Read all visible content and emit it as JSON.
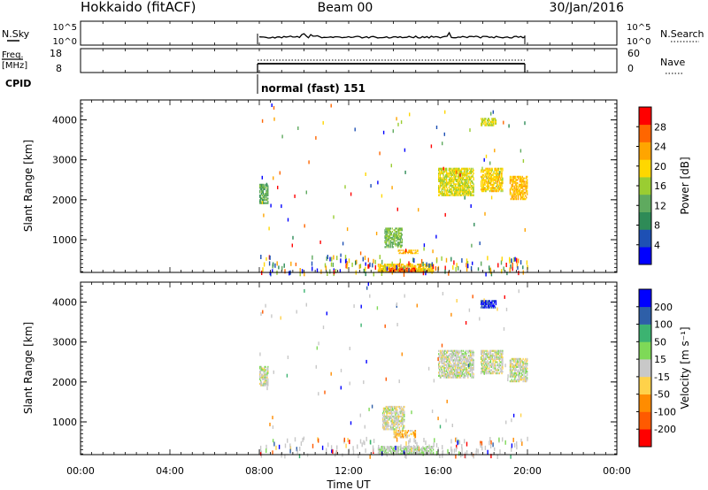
{
  "header": {
    "station": "Hokkaido (fitACF)",
    "beam": "Beam 00",
    "date": "30/Jan/2016"
  },
  "noise_panel": {
    "left_label": "N.Sky",
    "right_label": "N.Search",
    "ticks": [
      "10^5",
      "10^0"
    ]
  },
  "freq_panel": {
    "left_label_1": "Freq.",
    "left_label_2": "[MHz]",
    "right_label": "Nave",
    "left_ticks": [
      "18",
      "8"
    ],
    "right_ticks": [
      "60",
      "0"
    ]
  },
  "cpid": {
    "label": "CPID",
    "program": "normal (fast) 151"
  },
  "colors": {
    "power": [
      "#0000ff",
      "#1e50b4",
      "#2e8b57",
      "#5faa5f",
      "#9acd32",
      "#ffd700",
      "#ffa500",
      "#ff6600",
      "#ff0000"
    ],
    "velocity": [
      "#ff0000",
      "#ff5a00",
      "#ff8c00",
      "#ffd24a",
      "#c8c8c8",
      "#7ed957",
      "#3cb371",
      "#2e5fa8",
      "#0000ff"
    ]
  },
  "chart_data": [
    {
      "type": "heatmap",
      "name": "Power",
      "xlabel": "",
      "ylabel": "Slant Range [km]",
      "xlim": [
        "00:00",
        "24:00"
      ],
      "ylim": [
        180,
        4500
      ],
      "y_ticks": [
        "1000",
        "2000",
        "3000",
        "4000"
      ],
      "colorbar": {
        "label": "Power [dB]",
        "range": [
          0,
          32
        ],
        "ticks": [
          "4",
          "8",
          "12",
          "16",
          "20",
          "24",
          "28"
        ]
      },
      "regions": [
        {
          "x": [
            8.0,
            8.4
          ],
          "y": [
            1900,
            2400
          ],
          "value": 12
        },
        {
          "x": [
            14.2,
            15.1
          ],
          "y": [
            650,
            750
          ],
          "value": 22
        },
        {
          "x": [
            13.3,
            15.8
          ],
          "y": [
            180,
            400
          ],
          "value": 20
        },
        {
          "x": [
            13.8,
            15.0
          ],
          "y": [
            180,
            300
          ],
          "value": 28
        },
        {
          "x": [
            13.6,
            14.4
          ],
          "y": [
            800,
            1300
          ],
          "value": 14
        },
        {
          "x": [
            16.0,
            17.6
          ],
          "y": [
            2100,
            2800
          ],
          "value": 18
        },
        {
          "x": [
            17.9,
            18.9
          ],
          "y": [
            2200,
            2800
          ],
          "value": 20
        },
        {
          "x": [
            19.2,
            20.0
          ],
          "y": [
            2000,
            2600
          ],
          "value": 22
        },
        {
          "x": [
            17.9,
            18.6
          ],
          "y": [
            3850,
            4050
          ],
          "value": 18
        }
      ]
    },
    {
      "type": "heatmap",
      "name": "Velocity",
      "xlabel": "Time UT",
      "ylabel": "Slant Range [km]",
      "x_ticks": [
        "00:00",
        "04:00",
        "08:00",
        "12:00",
        "16:00",
        "20:00",
        "00:00"
      ],
      "xlim": [
        "00:00",
        "24:00"
      ],
      "ylim": [
        180,
        4500
      ],
      "y_ticks": [
        "1000",
        "2000",
        "3000",
        "4000"
      ],
      "colorbar": {
        "label": "Velocity [m s⁻¹]",
        "range": [
          -250,
          250
        ],
        "ticks": [
          "-200",
          "-100",
          "-50",
          "-15",
          "15",
          "50",
          "100",
          "200"
        ]
      },
      "regions": [
        {
          "x": [
            8.0,
            8.4
          ],
          "y": [
            1900,
            2400
          ],
          "value": 0
        },
        {
          "x": [
            14.0,
            15.0
          ],
          "y": [
            600,
            800
          ],
          "value": -60
        },
        {
          "x": [
            13.5,
            14.5
          ],
          "y": [
            800,
            1400
          ],
          "value": 0
        },
        {
          "x": [
            16.0,
            17.6
          ],
          "y": [
            2100,
            2800
          ],
          "value": 0
        },
        {
          "x": [
            17.9,
            18.9
          ],
          "y": [
            2200,
            2800
          ],
          "value": 0
        },
        {
          "x": [
            19.2,
            20.0
          ],
          "y": [
            2000,
            2600
          ],
          "value": 0
        },
        {
          "x": [
            17.9,
            18.6
          ],
          "y": [
            3850,
            4050
          ],
          "value": 200
        },
        {
          "x": [
            13.3,
            15.8
          ],
          "y": [
            180,
            400
          ],
          "value": 20
        }
      ]
    }
  ]
}
